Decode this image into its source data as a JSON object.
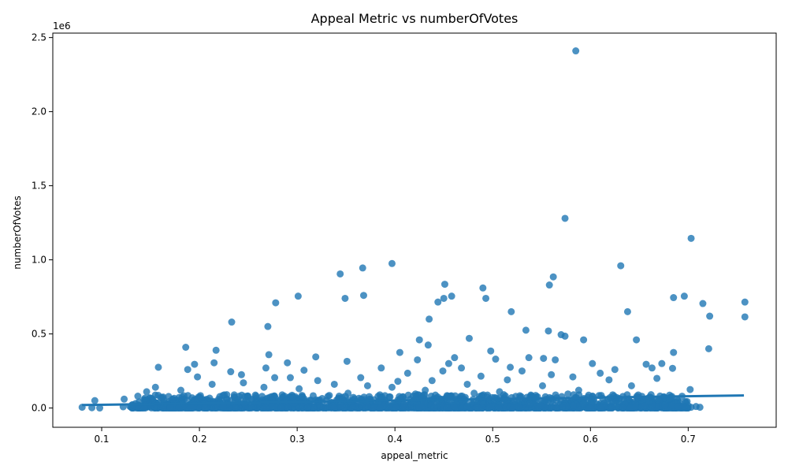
{
  "chart_data": {
    "type": "scatter",
    "title": "Appeal Metric vs numberOfVotes",
    "xlabel": "appeal_metric",
    "ylabel": "numberOfVotes",
    "y_offset_label": "1e6",
    "xlim": [
      0.05,
      0.79
    ],
    "ylim": [
      -130000,
      2530000
    ],
    "x_ticks": [
      0.1,
      0.2,
      0.3,
      0.4,
      0.5,
      0.6,
      0.7
    ],
    "x_tick_labels": [
      "0.1",
      "0.2",
      "0.3",
      "0.4",
      "0.5",
      "0.6",
      "0.7"
    ],
    "y_ticks": [
      0,
      500000,
      1000000,
      1500000,
      2000000,
      2500000
    ],
    "y_tick_labels": [
      "0.0",
      "0.5",
      "1.0",
      "1.5",
      "2.0",
      "2.5"
    ],
    "grid": false,
    "point_color": "#1f77b4",
    "regression_line": {
      "x": [
        0.08,
        0.757
      ],
      "y": [
        20000,
        85000
      ],
      "color": "#1f77b4"
    },
    "series": [
      {
        "highlighted_points": [
          [
            0.585,
            2410000
          ],
          [
            0.574,
            1280000
          ],
          [
            0.703,
            1145000
          ],
          [
            0.397,
            975000
          ],
          [
            0.631,
            960000
          ],
          [
            0.367,
            945000
          ],
          [
            0.344,
            905000
          ],
          [
            0.562,
            885000
          ],
          [
            0.451,
            835000
          ],
          [
            0.558,
            830000
          ],
          [
            0.49,
            810000
          ],
          [
            0.458,
            755000
          ],
          [
            0.368,
            760000
          ],
          [
            0.301,
            755000
          ],
          [
            0.696,
            755000
          ],
          [
            0.685,
            745000
          ],
          [
            0.349,
            740000
          ],
          [
            0.45,
            740000
          ],
          [
            0.493,
            740000
          ],
          [
            0.444,
            715000
          ],
          [
            0.758,
            715000
          ],
          [
            0.278,
            710000
          ],
          [
            0.715,
            705000
          ],
          [
            0.519,
            650000
          ],
          [
            0.638,
            650000
          ],
          [
            0.722,
            620000
          ],
          [
            0.758,
            615000
          ],
          [
            0.435,
            600000
          ],
          [
            0.233,
            580000
          ],
          [
            0.27,
            550000
          ],
          [
            0.534,
            525000
          ],
          [
            0.557,
            520000
          ],
          [
            0.57,
            495000
          ],
          [
            0.574,
            485000
          ],
          [
            0.476,
            470000
          ],
          [
            0.425,
            460000
          ],
          [
            0.593,
            460000
          ],
          [
            0.647,
            460000
          ],
          [
            0.434,
            425000
          ],
          [
            0.186,
            410000
          ],
          [
            0.721,
            400000
          ],
          [
            0.217,
            390000
          ],
          [
            0.498,
            385000
          ],
          [
            0.405,
            375000
          ],
          [
            0.685,
            375000
          ],
          [
            0.271,
            360000
          ],
          [
            0.319,
            345000
          ],
          [
            0.537,
            340000
          ],
          [
            0.461,
            340000
          ],
          [
            0.552,
            335000
          ],
          [
            0.503,
            330000
          ],
          [
            0.423,
            325000
          ],
          [
            0.564,
            325000
          ],
          [
            0.351,
            315000
          ],
          [
            0.215,
            305000
          ],
          [
            0.29,
            305000
          ],
          [
            0.657,
            295000
          ],
          [
            0.455,
            300000
          ],
          [
            0.602,
            300000
          ],
          [
            0.673,
            300000
          ],
          [
            0.195,
            295000
          ],
          [
            0.158,
            275000
          ],
          [
            0.268,
            270000
          ],
          [
            0.386,
            270000
          ],
          [
            0.468,
            270000
          ],
          [
            0.518,
            275000
          ],
          [
            0.663,
            270000
          ],
          [
            0.188,
            260000
          ],
          [
            0.307,
            255000
          ],
          [
            0.449,
            250000
          ],
          [
            0.53,
            250000
          ],
          [
            0.625,
            260000
          ],
          [
            0.684,
            268000
          ],
          [
            0.232,
            245000
          ],
          [
            0.243,
            225000
          ],
          [
            0.293,
            205000
          ],
          [
            0.413,
            235000
          ],
          [
            0.56,
            225000
          ],
          [
            0.61,
            235000
          ],
          [
            0.198,
            210000
          ],
          [
            0.277,
            205000
          ],
          [
            0.365,
            205000
          ],
          [
            0.488,
            215000
          ],
          [
            0.582,
            210000
          ],
          [
            0.668,
            200000
          ],
          [
            0.213,
            160000
          ],
          [
            0.321,
            185000
          ],
          [
            0.403,
            180000
          ],
          [
            0.438,
            185000
          ],
          [
            0.515,
            190000
          ],
          [
            0.619,
            190000
          ],
          [
            0.155,
            140000
          ],
          [
            0.245,
            170000
          ],
          [
            0.338,
            160000
          ],
          [
            0.372,
            150000
          ],
          [
            0.474,
            160000
          ],
          [
            0.551,
            150000
          ],
          [
            0.642,
            150000
          ],
          [
            0.181,
            120000
          ],
          [
            0.266,
            140000
          ],
          [
            0.302,
            130000
          ],
          [
            0.397,
            140000
          ],
          [
            0.431,
            120000
          ],
          [
            0.507,
            110000
          ],
          [
            0.588,
            120000
          ],
          [
            0.702,
            125000
          ],
          [
            0.137,
            80000
          ],
          [
            0.146,
            110000
          ],
          [
            0.228,
            90000
          ],
          [
            0.352,
            100000
          ],
          [
            0.421,
            95000
          ],
          [
            0.481,
            100000
          ],
          [
            0.577,
            95000
          ],
          [
            0.662,
            90000
          ],
          [
            0.093,
            50000
          ],
          [
            0.123,
            60000
          ],
          [
            0.162,
            70000
          ],
          [
            0.258,
            80000
          ],
          [
            0.305,
            85000
          ],
          [
            0.395,
            75000
          ],
          [
            0.457,
            80000
          ],
          [
            0.541,
            75000
          ],
          [
            0.611,
            85000
          ],
          [
            0.681,
            60000
          ],
          [
            0.08,
            5000
          ],
          [
            0.09,
            2000
          ],
          [
            0.098,
            0
          ],
          [
            0.122,
            8000
          ],
          [
            0.129,
            10000
          ],
          [
            0.7,
            15000
          ],
          [
            0.703,
            5000
          ],
          [
            0.708,
            10000
          ],
          [
            0.712,
            5000
          ],
          [
            0.69,
            10000
          ],
          [
            0.695,
            12000
          ],
          [
            0.676,
            20000
          ]
        ],
        "dense_band": {
          "x_range": [
            0.13,
            0.7
          ],
          "y_range": [
            0,
            90000
          ],
          "approx_count": 1800
        }
      }
    ]
  }
}
